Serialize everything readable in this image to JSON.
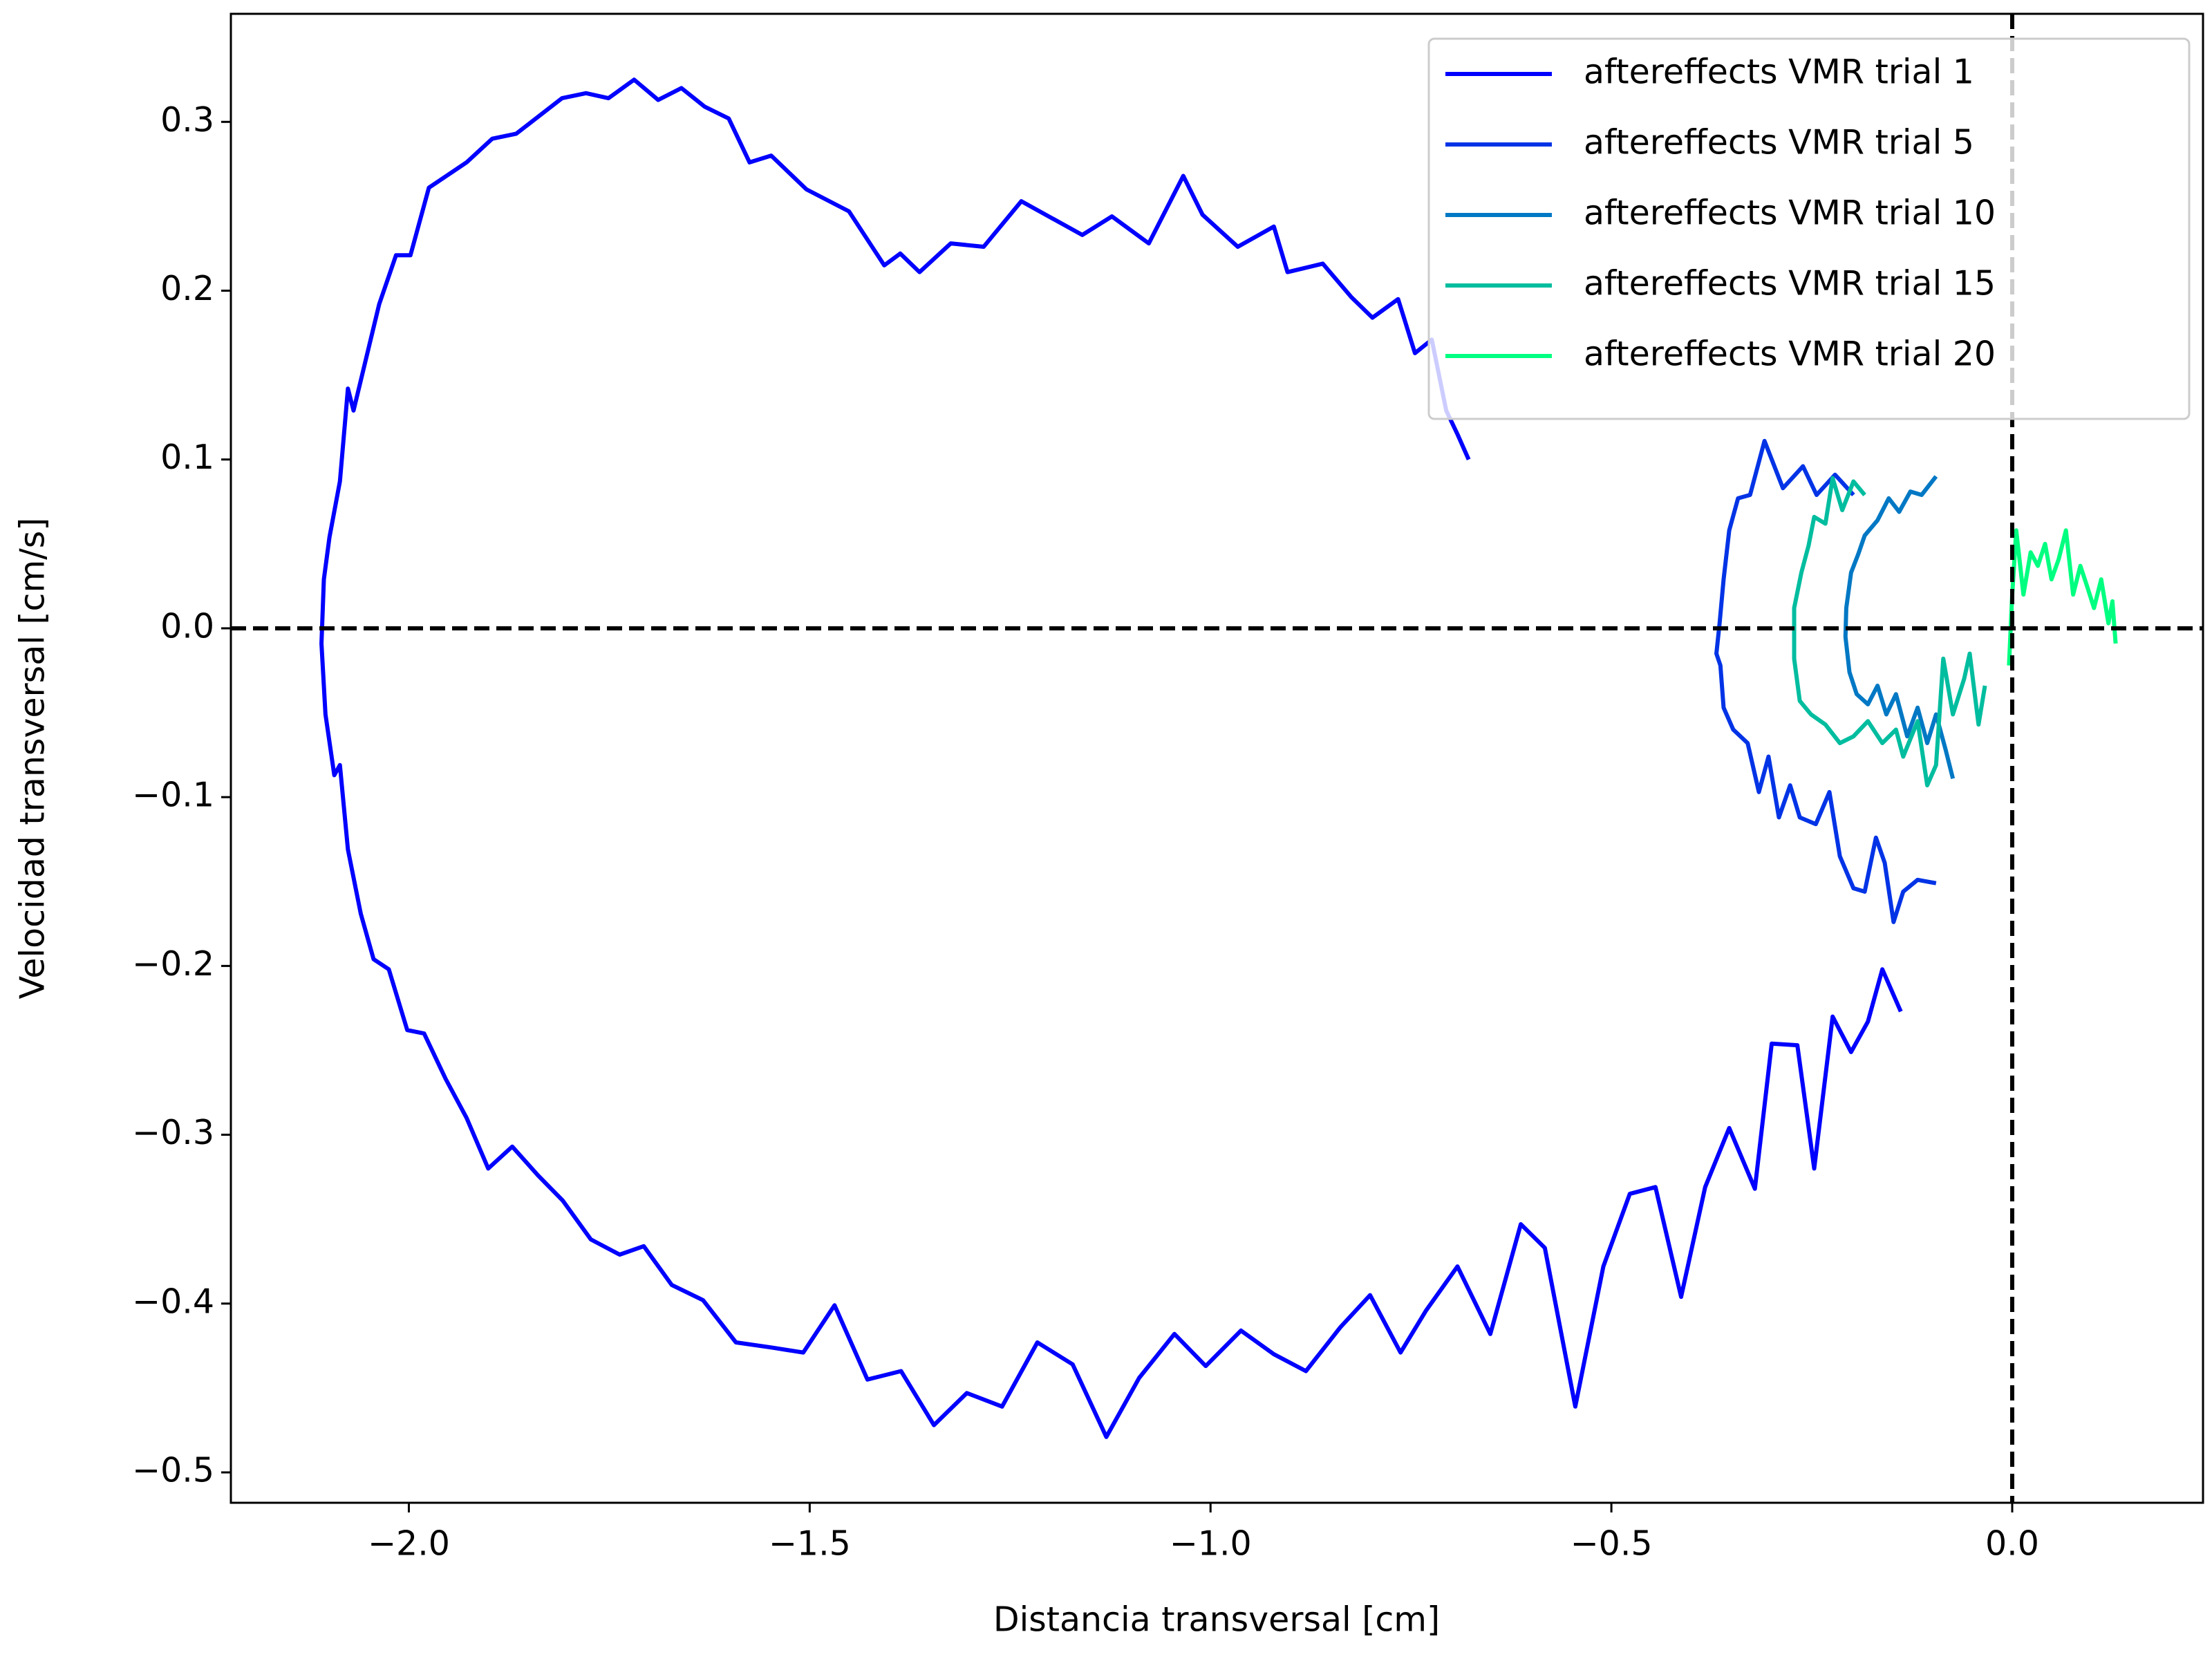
{
  "chart_data": {
    "type": "line",
    "xlabel": "Distancia transversal [cm]",
    "ylabel": "Velocidad transversal [cm/s]",
    "xlim": [
      -2.222,
      0.238
    ],
    "ylim": [
      -0.518,
      0.364
    ],
    "xticks": [
      {
        "value": -2.0,
        "label": "−2.0"
      },
      {
        "value": -1.5,
        "label": "−1.5"
      },
      {
        "value": -1.0,
        "label": "−1.0"
      },
      {
        "value": -0.5,
        "label": "−0.5"
      },
      {
        "value": 0.0,
        "label": "0.0"
      }
    ],
    "yticks": [
      {
        "value": -0.5,
        "label": "−0.5"
      },
      {
        "value": -0.4,
        "label": "−0.4"
      },
      {
        "value": -0.3,
        "label": "−0.3"
      },
      {
        "value": -0.2,
        "label": "−0.2"
      },
      {
        "value": -0.1,
        "label": "−0.1"
      },
      {
        "value": 0.0,
        "label": "0.0"
      },
      {
        "value": 0.1,
        "label": "0.1"
      },
      {
        "value": 0.2,
        "label": "0.2"
      },
      {
        "value": 0.3,
        "label": "0.3"
      }
    ],
    "reference_lines": {
      "x": 0,
      "y": 0
    },
    "legend": "upper right",
    "series": [
      {
        "name": "aftereffects VMR trial 1",
        "color": "#0000ff",
        "x": [
          -0.678,
          -0.692,
          -0.706,
          -0.724,
          -0.745,
          -0.766,
          -0.798,
          -0.824,
          -0.86,
          -0.904,
          -0.921,
          -0.966,
          -1.01,
          -1.034,
          -1.077,
          -1.123,
          -1.16,
          -1.236,
          -1.283,
          -1.324,
          -1.363,
          -1.387,
          -1.407,
          -1.451,
          -1.504,
          -1.548,
          -1.575,
          -1.601,
          -1.631,
          -1.66,
          -1.689,
          -1.719,
          -1.751,
          -1.779,
          -1.809,
          -1.866,
          -1.896,
          -1.928,
          -1.975,
          -1.998,
          -2.016,
          -2.037,
          -2.069,
          -2.076,
          -2.086,
          -2.099,
          -2.106,
          -2.109,
          -2.104,
          -2.093,
          -2.086,
          -2.076,
          -2.06,
          -2.044,
          -2.025,
          -2.002,
          -1.981,
          -1.954,
          -1.928,
          -1.901,
          -1.871,
          -1.839,
          -1.808,
          -1.773,
          -1.737,
          -1.707,
          -1.672,
          -1.633,
          -1.592,
          -1.548,
          -1.508,
          -1.469,
          -1.428,
          -1.386,
          -1.345,
          -1.304,
          -1.26,
          -1.216,
          -1.172,
          -1.13,
          -1.089,
          -1.045,
          -1.006,
          -0.962,
          -0.921,
          -0.881,
          -0.838,
          -0.801,
          -0.763,
          -0.731,
          -0.692,
          -0.651,
          -0.613,
          -0.583,
          -0.545,
          -0.51,
          -0.477,
          -0.445,
          -0.413,
          -0.383,
          -0.353,
          -0.321,
          -0.3,
          -0.268,
          -0.247,
          -0.224,
          -0.201,
          -0.18,
          -0.162,
          -0.139
        ],
        "values": [
          0.1,
          0.115,
          0.129,
          0.171,
          0.163,
          0.195,
          0.184,
          0.196,
          0.216,
          0.211,
          0.238,
          0.226,
          0.245,
          0.268,
          0.228,
          0.244,
          0.233,
          0.253,
          0.226,
          0.228,
          0.211,
          0.222,
          0.215,
          0.247,
          0.26,
          0.28,
          0.276,
          0.302,
          0.309,
          0.32,
          0.313,
          0.325,
          0.314,
          0.317,
          0.314,
          0.293,
          0.29,
          0.276,
          0.261,
          0.221,
          0.221,
          0.192,
          0.129,
          0.142,
          0.087,
          0.054,
          0.029,
          -0.009,
          -0.051,
          -0.087,
          -0.081,
          -0.131,
          -0.169,
          -0.196,
          -0.202,
          -0.238,
          -0.24,
          -0.267,
          -0.29,
          -0.32,
          -0.307,
          -0.324,
          -0.339,
          -0.362,
          -0.371,
          -0.366,
          -0.389,
          -0.398,
          -0.423,
          -0.426,
          -0.429,
          -0.401,
          -0.445,
          -0.44,
          -0.472,
          -0.453,
          -0.461,
          -0.423,
          -0.436,
          -0.479,
          -0.444,
          -0.418,
          -0.437,
          -0.416,
          -0.43,
          -0.44,
          -0.414,
          -0.395,
          -0.429,
          -0.404,
          -0.378,
          -0.418,
          -0.353,
          -0.367,
          -0.461,
          -0.378,
          -0.335,
          -0.331,
          -0.396,
          -0.331,
          -0.296,
          -0.332,
          -0.246,
          -0.247,
          -0.32,
          -0.23,
          -0.251,
          -0.233,
          -0.202,
          -0.227
        ]
      },
      {
        "name": "aftereffects VMR trial 5",
        "color": "#0033e6",
        "x": [
          -0.198,
          -0.221,
          -0.244,
          -0.261,
          -0.286,
          -0.309,
          -0.327,
          -0.342,
          -0.353,
          -0.36,
          -0.365,
          -0.369,
          -0.364,
          -0.36,
          -0.348,
          -0.33,
          -0.316,
          -0.304,
          -0.291,
          -0.277,
          -0.265,
          -0.245,
          -0.228,
          -0.215,
          -0.198,
          -0.184,
          -0.17,
          -0.159,
          -0.148,
          -0.136,
          -0.118,
          -0.095
        ],
        "values": [
          0.079,
          0.091,
          0.079,
          0.096,
          0.083,
          0.111,
          0.079,
          0.077,
          0.058,
          0.029,
          0.003,
          -0.015,
          -0.022,
          -0.047,
          -0.06,
          -0.068,
          -0.097,
          -0.076,
          -0.112,
          -0.093,
          -0.112,
          -0.116,
          -0.097,
          -0.135,
          -0.154,
          -0.156,
          -0.124,
          -0.139,
          -0.174,
          -0.156,
          -0.149,
          -0.151
        ]
      },
      {
        "name": "aftereffects VMR trial 10",
        "color": "#0078c4",
        "x": [
          -0.095,
          -0.113,
          -0.127,
          -0.141,
          -0.154,
          -0.168,
          -0.184,
          -0.192,
          -0.201,
          -0.207,
          -0.208,
          -0.203,
          -0.194,
          -0.18,
          -0.168,
          -0.157,
          -0.145,
          -0.131,
          -0.118,
          -0.106,
          -0.095,
          -0.083,
          -0.074
        ],
        "values": [
          0.09,
          0.079,
          0.081,
          0.069,
          0.077,
          0.064,
          0.055,
          0.044,
          0.033,
          0.012,
          -0.005,
          -0.026,
          -0.039,
          -0.045,
          -0.034,
          -0.051,
          -0.039,
          -0.064,
          -0.047,
          -0.068,
          -0.051,
          -0.072,
          -0.089
        ]
      },
      {
        "name": "aftereffects VMR trial 15",
        "color": "#00bd9f",
        "x": [
          -0.184,
          -0.198,
          -0.212,
          -0.224,
          -0.233,
          -0.247,
          -0.254,
          -0.263,
          -0.272,
          -0.272,
          -0.265,
          -0.251,
          -0.233,
          -0.215,
          -0.198,
          -0.18,
          -0.162,
          -0.145,
          -0.136,
          -0.118,
          -0.106,
          -0.095,
          -0.086,
          -0.074,
          -0.06,
          -0.053,
          -0.042,
          -0.034
        ],
        "values": [
          0.079,
          0.087,
          0.07,
          0.089,
          0.062,
          0.066,
          0.049,
          0.033,
          0.012,
          -0.018,
          -0.043,
          -0.051,
          -0.057,
          -0.068,
          -0.064,
          -0.055,
          -0.068,
          -0.06,
          -0.076,
          -0.055,
          -0.093,
          -0.081,
          -0.018,
          -0.051,
          -0.03,
          -0.015,
          -0.057,
          -0.034
        ]
      },
      {
        "name": "aftereffects VMR trial 20",
        "color": "#00ff80",
        "x": [
          -0.004,
          0.0,
          0.005,
          0.014,
          0.023,
          0.032,
          0.041,
          0.049,
          0.058,
          0.067,
          0.076,
          0.085,
          0.094,
          0.102,
          0.111,
          0.12,
          0.125,
          0.129
        ],
        "values": [
          -0.022,
          0.02,
          0.058,
          0.02,
          0.045,
          0.037,
          0.05,
          0.029,
          0.041,
          0.058,
          0.02,
          0.037,
          0.024,
          0.012,
          0.029,
          0.003,
          0.016,
          -0.009
        ]
      }
    ]
  }
}
